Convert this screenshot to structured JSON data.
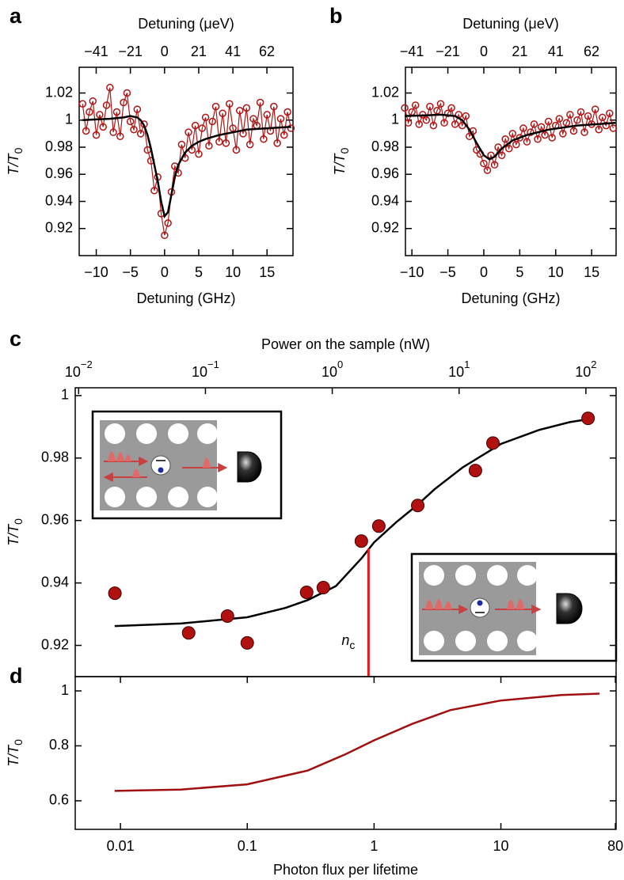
{
  "chart_data": [
    {
      "type": "scatter",
      "panel": "a",
      "xlabel": "Detuning (GHz)",
      "x2label": "Detuning (μeV)",
      "ylabel": "T/T",
      "ylabel_sub": "0",
      "xlim": [
        -12.5,
        18.8
      ],
      "ylim": [
        0.9,
        1.039
      ],
      "xticks": [
        {
          "value": -10,
          "label": "−10"
        },
        {
          "value": -5,
          "label": "−5"
        },
        0,
        5,
        10,
        15
      ],
      "x2lim": [
        -51.7,
        77.8
      ],
      "x2ticks": [
        {
          "value": -41.4,
          "label": "−41"
        },
        {
          "value": -20.7,
          "label": "−21"
        },
        0,
        {
          "value": 20.7,
          "label": "21"
        },
        {
          "value": 41.4,
          "label": "41"
        },
        {
          "value": 62.0,
          "label": "62"
        }
      ],
      "yticks": [
        0.92,
        0.94,
        0.96,
        0.98,
        1,
        1.02
      ],
      "series": [
        {
          "type": "scatter",
          "marker": "open",
          "connect": true,
          "color": "#b01414",
          "x": [
            -12,
            -11.5,
            -11,
            -10.5,
            -10,
            -9.5,
            -9,
            -8.5,
            -8,
            -7.5,
            -7,
            -6.5,
            -6,
            -5.5,
            -5,
            -4.5,
            -4,
            -3.5,
            -3,
            -2.5,
            -2,
            -1.5,
            -1,
            -0.5,
            0,
            0.5,
            1,
            1.5,
            2,
            2.5,
            3,
            3.5,
            4,
            4.5,
            5,
            5.5,
            6,
            6.5,
            7,
            7.5,
            8,
            8.5,
            9,
            9.5,
            10,
            10.5,
            11,
            11.5,
            12,
            12.5,
            13,
            13.5,
            14,
            14.5,
            15,
            15.5,
            16,
            16.5,
            17,
            17.5,
            18,
            18.5
          ],
          "values": [
            1.012,
            0.992,
            1.006,
            1.014,
            0.989,
            1.004,
            0.995,
            1.011,
            1.024,
            0.991,
            1.006,
            0.988,
            1.013,
            1.02,
            0.999,
            0.993,
            1.008,
            0.99,
            0.997,
            0.978,
            0.97,
            0.948,
            0.958,
            0.931,
            0.915,
            0.924,
            0.947,
            0.966,
            0.961,
            0.982,
            0.972,
            0.991,
            0.978,
            0.996,
            0.975,
            0.994,
            1.002,
            0.981,
            0.999,
            1.01,
            0.984,
            1.005,
            0.983,
            1.012,
            0.994,
            0.978,
            1.007,
            0.99,
            1.009,
            0.982,
            1.001,
            0.996,
            1.013,
            0.986,
            1.004,
            0.992,
            1.01,
            0.983,
            1.001,
            0.989,
            1.006,
            0.994
          ]
        },
        {
          "type": "line",
          "color": "#000000",
          "x": [
            -12,
            -10,
            -8,
            -6,
            -5,
            -4,
            -3.5,
            -3,
            -2.5,
            -2,
            -1.5,
            -1,
            -0.5,
            0,
            0.5,
            1,
            1.5,
            2,
            3,
            4,
            5,
            6,
            8,
            10,
            12,
            15,
            18.5
          ],
          "values": [
            1.0,
            1.0005,
            1.001,
            1.002,
            1.003,
            1.002,
            1.0,
            0.996,
            0.989,
            0.979,
            0.967,
            0.955,
            0.94,
            0.929,
            0.932,
            0.945,
            0.958,
            0.967,
            0.976,
            0.981,
            0.984,
            0.986,
            0.989,
            0.991,
            0.993,
            0.994,
            0.995
          ]
        }
      ]
    },
    {
      "type": "scatter",
      "panel": "b",
      "xlabel": "Detuning (GHz)",
      "x2label": "Detuning (μeV)",
      "ylabel": "T/T",
      "ylabel_sub": "0",
      "xlim": [
        -10.9,
        18.4
      ],
      "ylim": [
        0.9,
        1.039
      ],
      "xticks": [
        {
          "value": -10,
          "label": "−10"
        },
        {
          "value": -5,
          "label": "−5"
        },
        0,
        5,
        10,
        15
      ],
      "x2lim": [
        -45.1,
        76.1
      ],
      "x2ticks": [
        {
          "value": -41.4,
          "label": "−41"
        },
        {
          "value": -20.7,
          "label": "−21"
        },
        0,
        {
          "value": 20.7,
          "label": "21"
        },
        {
          "value": 41.4,
          "label": "41"
        },
        {
          "value": 62.0,
          "label": "62"
        }
      ],
      "yticks": [
        0.92,
        0.94,
        0.96,
        0.98,
        1,
        1.02
      ],
      "series": [
        {
          "type": "scatter",
          "marker": "open",
          "connect": true,
          "color": "#b01414",
          "x": [
            -11,
            -10.5,
            -10,
            -9.5,
            -9,
            -8.5,
            -8,
            -7.5,
            -7,
            -6.5,
            -6,
            -5.5,
            -5,
            -4.5,
            -4,
            -3.5,
            -3,
            -2.5,
            -2,
            -1.5,
            -1,
            -0.5,
            0,
            0.5,
            1,
            1.5,
            2,
            2.5,
            3,
            3.5,
            4,
            4.5,
            5,
            5.5,
            6,
            6.5,
            7,
            7.5,
            8,
            8.5,
            9,
            9.5,
            10,
            10.5,
            11,
            11.5,
            12,
            12.5,
            13,
            13.5,
            14,
            14.5,
            15,
            15.5,
            16,
            16.5,
            17,
            17.5,
            18
          ],
          "values": [
            1.009,
            0.998,
            1.006,
            1.011,
            0.997,
            1.004,
            1.0,
            1.01,
            0.996,
            1.007,
            1.012,
            0.998,
            1.005,
            1.009,
            0.997,
            1.004,
            0.996,
            1.003,
            0.988,
            0.992,
            0.978,
            0.975,
            0.968,
            0.963,
            0.974,
            0.967,
            0.98,
            0.974,
            0.986,
            0.979,
            0.99,
            0.982,
            0.987,
            0.994,
            0.984,
            0.991,
            0.997,
            0.986,
            0.995,
            0.989,
            0.999,
            0.987,
            0.996,
            1.001,
            0.99,
            0.998,
            1.004,
            0.992,
            1.0,
            1.006,
            0.991,
            1.003,
            0.997,
            1.008,
            0.993,
            1.002,
            0.996,
            1.005,
            0.994
          ]
        },
        {
          "type": "line",
          "color": "#000000",
          "x": [
            -11,
            -8,
            -6,
            -4,
            -3,
            -2,
            -1,
            0,
            0.8,
            1.5,
            2.5,
            4,
            6,
            9,
            13,
            18.3
          ],
          "values": [
            1.003,
            1.0035,
            1.004,
            1.003,
            1.0,
            0.993,
            0.983,
            0.974,
            0.971,
            0.973,
            0.979,
            0.985,
            0.989,
            0.993,
            0.996,
            0.998
          ]
        }
      ]
    },
    {
      "type": "scatter",
      "panel": "c",
      "x2label": "Power on the sample (nW)",
      "ylabel": "T/T",
      "ylabel_sub": "0",
      "xlim": [
        0.0044,
        81
      ],
      "xlog": true,
      "ylim": [
        0.91,
        1.0025
      ],
      "x2lim": [
        0.0094,
        173
      ],
      "x2log": true,
      "x2ticks": [
        {
          "value": 0.01,
          "label": "10",
          "exponent": "−2"
        },
        {
          "value": 0.1,
          "label": "10",
          "exponent": "−1"
        },
        {
          "value": 1,
          "label": "10",
          "exponent": "0"
        },
        {
          "value": 10,
          "label": "10",
          "exponent": "1"
        },
        {
          "value": 100,
          "label": "10",
          "exponent": "2"
        }
      ],
      "yticks": [
        0.92,
        0.94,
        0.96,
        0.98,
        1
      ],
      "series": [
        {
          "type": "line",
          "color": "#000000",
          "x": [
            0.009,
            0.03,
            0.1,
            0.2,
            0.3,
            0.5,
            0.8,
            1,
            1.5,
            2.2,
            3,
            5,
            10,
            20,
            35,
            50
          ],
          "values": [
            0.9262,
            0.927,
            0.929,
            0.932,
            0.9345,
            0.939,
            0.948,
            0.953,
            0.9595,
            0.965,
            0.97,
            0.977,
            0.9845,
            0.989,
            0.9915,
            0.9925
          ]
        },
        {
          "type": "scatter",
          "marker": "filled",
          "color": "#b01010",
          "x": [
            0.00904,
            0.0345,
            0.0698,
            0.1,
            0.294,
            0.398,
            0.794,
            1.09,
            2.21,
            6.3,
            8.66,
            48.7
          ],
          "values": [
            0.9367,
            0.924,
            0.9294,
            0.9208,
            0.937,
            0.9385,
            0.9534,
            0.9582,
            0.9648,
            0.976,
            0.9848,
            0.9927
          ]
        }
      ],
      "annotation": {
        "text": "n",
        "sub": "c",
        "x": 0.904,
        "y": 0.951,
        "color": "#e8141a"
      }
    },
    {
      "type": "line",
      "panel": "d",
      "xlabel": "Photon flux per lifetime",
      "ylabel": "T/T",
      "ylabel_sub": "0",
      "xlim": [
        0.0044,
        81
      ],
      "xlog": true,
      "ylim": [
        0.496,
        1.052
      ],
      "xticks": [
        0.01,
        0.1,
        1,
        10,
        80
      ],
      "yticks": [
        0.6,
        0.8,
        1
      ],
      "series": [
        {
          "type": "line",
          "color": "#a01010",
          "x": [
            0.009,
            0.03,
            0.1,
            0.3,
            0.6,
            1,
            2,
            4,
            10,
            30,
            60
          ],
          "values": [
            0.636,
            0.641,
            0.66,
            0.71,
            0.77,
            0.82,
            0.88,
            0.93,
            0.965,
            0.985,
            0.99
          ]
        }
      ]
    }
  ]
}
